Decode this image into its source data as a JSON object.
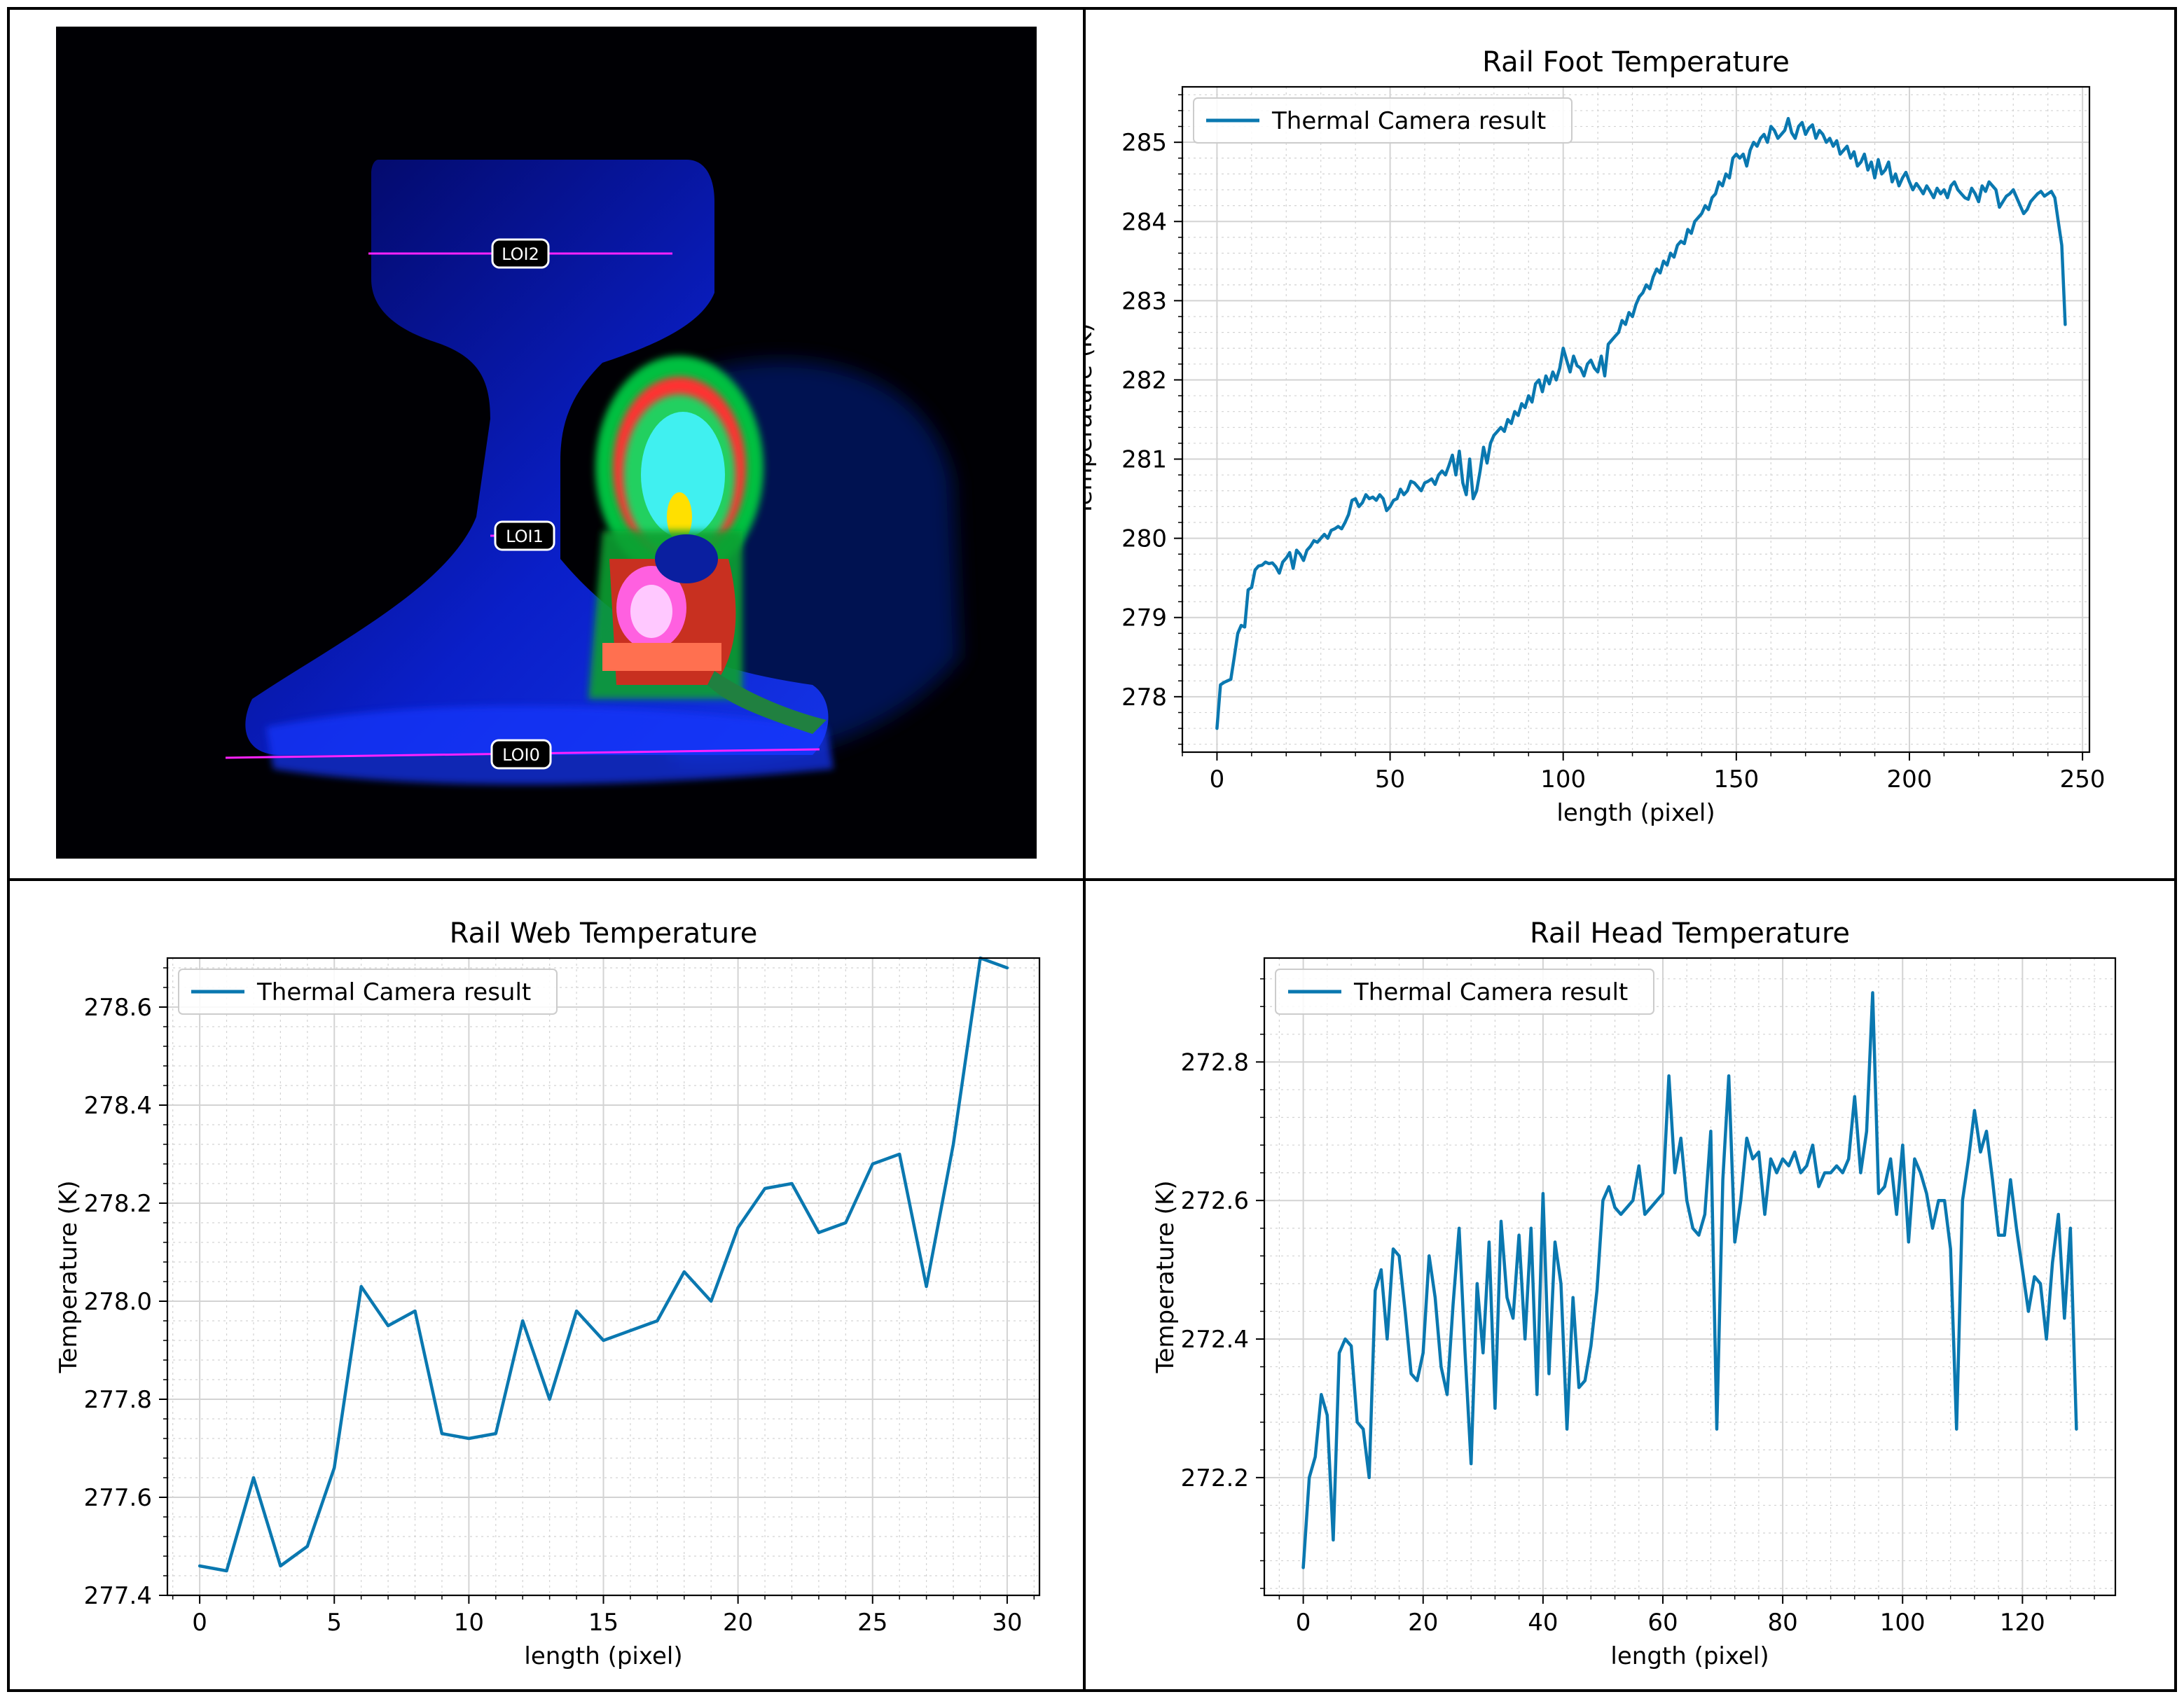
{
  "thermal_image": {
    "labels": [
      "LOI2",
      "LOI1",
      "LOI0"
    ]
  },
  "colors": {
    "line": "#0a78b0",
    "grid": "#d3d3d3",
    "frame": "#000000"
  },
  "chart_data": [
    {
      "id": "foot",
      "type": "line",
      "title": "Rail Foot Temperature",
      "xlabel": "length (pixel)",
      "ylabel": "Temperature (K)",
      "legend": "Thermal Camera result",
      "legend_position": "top-left",
      "xlim": [
        -10,
        252
      ],
      "ylim": [
        277.3,
        285.7
      ],
      "xticks": [
        0,
        50,
        100,
        150,
        200,
        250
      ],
      "yticks": [
        278,
        279,
        280,
        281,
        282,
        283,
        284,
        285
      ],
      "grid": true,
      "x_start": 0,
      "x_step": 1,
      "values": [
        277.6,
        278.15,
        278.18,
        278.2,
        278.22,
        278.5,
        278.8,
        278.9,
        278.88,
        279.35,
        279.38,
        279.6,
        279.65,
        279.66,
        279.7,
        279.68,
        279.69,
        279.64,
        279.56,
        279.7,
        279.75,
        279.82,
        279.62,
        279.85,
        279.8,
        279.72,
        279.85,
        279.9,
        279.97,
        279.95,
        280.0,
        280.05,
        280.0,
        280.1,
        280.12,
        280.15,
        280.12,
        280.2,
        280.3,
        280.48,
        280.5,
        280.4,
        280.45,
        280.55,
        280.5,
        280.52,
        280.48,
        280.55,
        280.5,
        280.35,
        280.4,
        280.48,
        280.5,
        280.62,
        280.55,
        280.6,
        280.72,
        280.7,
        280.65,
        280.6,
        280.7,
        280.72,
        280.75,
        280.68,
        280.8,
        280.85,
        280.8,
        280.92,
        281.05,
        280.8,
        281.1,
        280.7,
        280.55,
        281.0,
        280.5,
        280.6,
        280.85,
        281.15,
        280.95,
        281.2,
        281.3,
        281.35,
        281.4,
        281.35,
        281.5,
        281.45,
        281.6,
        281.55,
        281.7,
        281.65,
        281.8,
        281.72,
        281.95,
        282.0,
        281.85,
        282.05,
        281.95,
        282.1,
        282.0,
        282.15,
        282.4,
        282.25,
        282.1,
        282.3,
        282.18,
        282.15,
        282.05,
        282.2,
        282.25,
        282.15,
        282.1,
        282.3,
        282.05,
        282.45,
        282.5,
        282.55,
        282.6,
        282.75,
        282.7,
        282.85,
        282.8,
        282.95,
        283.05,
        283.1,
        283.2,
        283.15,
        283.3,
        283.4,
        283.35,
        283.5,
        283.45,
        283.6,
        283.55,
        283.7,
        283.75,
        283.72,
        283.9,
        283.85,
        284.0,
        284.05,
        284.1,
        284.2,
        284.15,
        284.3,
        284.35,
        284.5,
        284.45,
        284.6,
        284.55,
        284.8,
        284.85,
        284.8,
        284.85,
        284.7,
        284.9,
        285.0,
        284.95,
        285.05,
        285.1,
        285.0,
        285.2,
        285.15,
        285.05,
        285.1,
        285.15,
        285.3,
        285.12,
        285.05,
        285.2,
        285.25,
        285.1,
        285.18,
        285.22,
        285.05,
        285.15,
        285.1,
        285.0,
        285.05,
        284.95,
        285.02,
        284.85,
        284.9,
        284.95,
        284.8,
        284.88,
        284.7,
        284.75,
        284.85,
        284.65,
        284.75,
        284.55,
        284.78,
        284.6,
        284.65,
        284.75,
        284.5,
        284.6,
        284.45,
        284.55,
        284.62,
        284.5,
        284.4,
        284.48,
        284.42,
        284.35,
        284.45,
        284.38,
        284.3,
        284.42,
        284.35,
        284.4,
        284.3,
        284.45,
        284.5,
        284.4,
        284.35,
        284.3,
        284.28,
        284.42,
        284.35,
        284.25,
        284.45,
        284.38,
        284.5,
        284.45,
        284.4,
        284.18,
        284.25,
        284.32,
        284.35,
        284.4,
        284.3,
        284.2,
        284.1,
        284.15,
        284.25,
        284.3,
        284.35,
        284.38,
        284.32,
        284.35,
        284.38,
        284.3,
        284.0,
        283.7,
        282.7
      ]
    },
    {
      "id": "web",
      "type": "line",
      "title": "Rail Web Temperature",
      "xlabel": "length (pixel)",
      "ylabel": "Temperature (K)",
      "legend": "Thermal Camera result",
      "legend_position": "top-left",
      "xlim": [
        -1.2,
        31.2
      ],
      "ylim": [
        277.4,
        278.7
      ],
      "xticks": [
        0,
        5,
        10,
        15,
        20,
        25,
        30
      ],
      "yticks": [
        277.4,
        277.6,
        277.8,
        278.0,
        278.2,
        278.4,
        278.6
      ],
      "tick_decimals": 1,
      "grid": true,
      "x_start": 0,
      "x_step": 1,
      "values": [
        277.46,
        277.45,
        277.64,
        277.46,
        277.5,
        277.66,
        278.03,
        277.95,
        277.98,
        277.73,
        277.72,
        277.73,
        277.96,
        277.8,
        277.98,
        277.92,
        277.94,
        277.96,
        278.06,
        278.0,
        278.15,
        278.23,
        278.24,
        278.14,
        278.16,
        278.28,
        278.3,
        278.03,
        278.32,
        278.7,
        278.68
      ]
    },
    {
      "id": "head",
      "type": "line",
      "title": "Rail Head Temperature",
      "xlabel": "length (pixel)",
      "ylabel": "Temperature (K)",
      "legend": "Thermal Camera result",
      "legend_position": "top-left",
      "xlim": [
        -6.5,
        135.5
      ],
      "ylim": [
        272.03,
        272.95
      ],
      "xticks": [
        0,
        20,
        40,
        60,
        80,
        100,
        120
      ],
      "yticks": [
        272.2,
        272.4,
        272.6,
        272.8
      ],
      "tick_decimals": 1,
      "grid": true,
      "x_start": 0,
      "x_step": 1,
      "values": [
        272.07,
        272.2,
        272.23,
        272.32,
        272.29,
        272.11,
        272.38,
        272.4,
        272.39,
        272.28,
        272.27,
        272.2,
        272.47,
        272.5,
        272.4,
        272.53,
        272.52,
        272.44,
        272.35,
        272.34,
        272.38,
        272.52,
        272.46,
        272.36,
        272.32,
        272.45,
        272.56,
        272.38,
        272.22,
        272.48,
        272.38,
        272.54,
        272.3,
        272.57,
        272.46,
        272.43,
        272.55,
        272.4,
        272.56,
        272.32,
        272.61,
        272.35,
        272.54,
        272.48,
        272.27,
        272.46,
        272.33,
        272.34,
        272.39,
        272.47,
        272.6,
        272.62,
        272.59,
        272.58,
        272.59,
        272.6,
        272.65,
        272.58,
        272.59,
        272.6,
        272.61,
        272.78,
        272.64,
        272.69,
        272.6,
        272.56,
        272.55,
        272.58,
        272.7,
        272.27,
        272.63,
        272.78,
        272.54,
        272.6,
        272.69,
        272.66,
        272.67,
        272.58,
        272.66,
        272.64,
        272.66,
        272.65,
        272.67,
        272.64,
        272.65,
        272.68,
        272.62,
        272.64,
        272.64,
        272.65,
        272.64,
        272.66,
        272.75,
        272.64,
        272.7,
        272.9,
        272.61,
        272.62,
        272.66,
        272.58,
        272.68,
        272.54,
        272.66,
        272.64,
        272.61,
        272.56,
        272.6,
        272.6,
        272.53,
        272.27,
        272.6,
        272.66,
        272.73,
        272.67,
        272.7,
        272.63,
        272.55,
        272.55,
        272.63,
        272.56,
        272.5,
        272.44,
        272.49,
        272.48,
        272.4,
        272.51,
        272.58,
        272.43,
        272.56,
        272.27
      ]
    }
  ]
}
